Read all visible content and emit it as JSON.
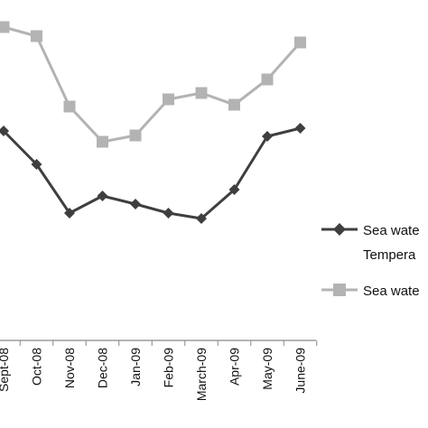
{
  "chart_data": {
    "type": "line",
    "categories": [
      "Sept-08",
      "Oct-08",
      "Nov-08",
      "Dec-08",
      "Jan-09",
      "Feb-09",
      "March-09",
      "Apr-09",
      "May-09",
      "June-09"
    ],
    "y_axis_shown": false,
    "grid": false,
    "legend_position": "right",
    "series": [
      {
        "name": "Sea wate",
        "name_line2": "Tempera",
        "color": "#3f3f3f",
        "marker": "diamond",
        "values": [
          145,
          182,
          236,
          217,
          226,
          236,
          242,
          210,
          151,
          142
        ]
      },
      {
        "name": "Sea wate",
        "color": "#b3b3b3",
        "marker": "square",
        "values": [
          30,
          40,
          118,
          157,
          150,
          110,
          103,
          116,
          88,
          47
        ]
      }
    ]
  }
}
